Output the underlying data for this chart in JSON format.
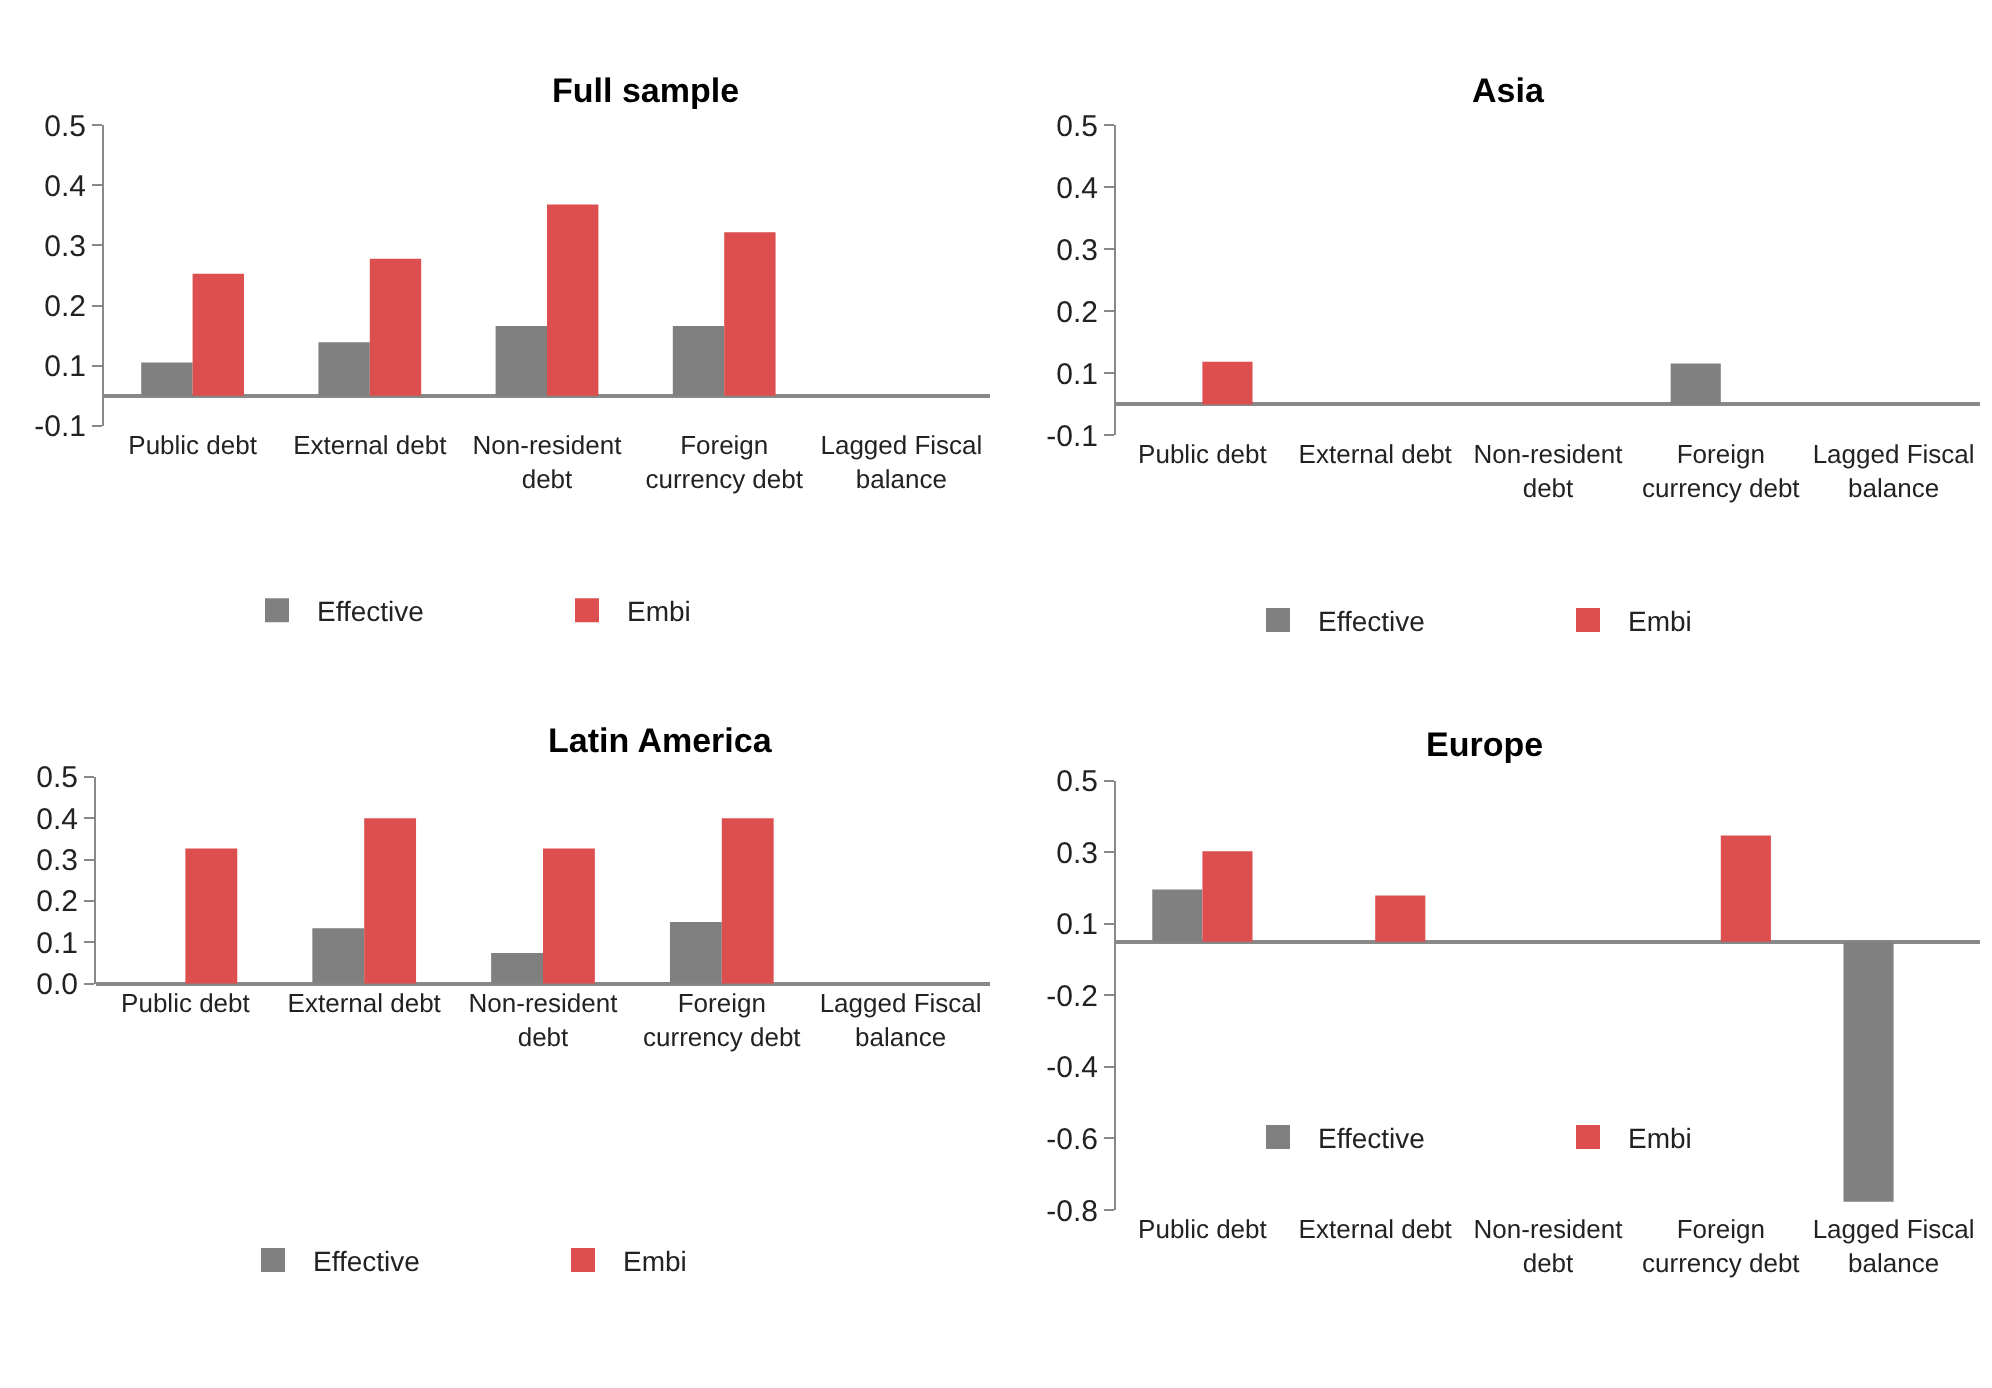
{
  "chart_data": [
    {
      "type": "bar",
      "title": "Full sample",
      "categories": [
        "Public debt",
        "External debt",
        "Non-resident debt",
        "Foreign currency debt",
        "Lagged Fiscal balance"
      ],
      "series": [
        {
          "name": "Effective",
          "color": "#808080",
          "values": [
            0.055,
            0.089,
            0.116,
            0.116,
            null
          ]
        },
        {
          "name": "Embi",
          "color": "#dd4e4e",
          "values": [
            0.203,
            0.228,
            0.318,
            0.272,
            null
          ]
        }
      ],
      "ylim": [
        -0.05,
        0.45
      ],
      "yticks": [
        {
          "value": -0.05,
          "label": "-0.1"
        },
        {
          "value": 0.05,
          "label": "0.1"
        },
        {
          "value": 0.15,
          "label": "0.2"
        },
        {
          "value": 0.25,
          "label": "0.3"
        },
        {
          "value": 0.35,
          "label": "0.4"
        },
        {
          "value": 0.45,
          "label": "0.5"
        }
      ],
      "grid": false,
      "legend": "bottom"
    },
    {
      "type": "bar",
      "title": "Asia",
      "categories": [
        "Public debt",
        "External debt",
        "Non-resident debt",
        "Foreign currency debt",
        "Lagged Fiscal balance"
      ],
      "series": [
        {
          "name": "Effective",
          "color": "#808080",
          "values": [
            null,
            null,
            null,
            0.066,
            null
          ]
        },
        {
          "name": "Embi",
          "color": "#dd4e4e",
          "values": [
            0.069,
            null,
            null,
            null,
            null
          ]
        }
      ],
      "ylim": [
        -0.05,
        0.45
      ],
      "yticks": [
        {
          "value": -0.05,
          "label": "-0.1"
        },
        {
          "value": 0.05,
          "label": "0.1"
        },
        {
          "value": 0.15,
          "label": "0.2"
        },
        {
          "value": 0.25,
          "label": "0.3"
        },
        {
          "value": 0.35,
          "label": "0.4"
        },
        {
          "value": 0.45,
          "label": "0.5"
        }
      ],
      "grid": false,
      "legend": "bottom"
    },
    {
      "type": "bar",
      "title": "Latin America",
      "categories": [
        "Public debt",
        "External debt",
        "Non-resident debt",
        "Foreign currency debt",
        "Lagged Fiscal balance"
      ],
      "series": [
        {
          "name": "Effective",
          "color": "#808080",
          "values": [
            null,
            0.134,
            0.074,
            0.149,
            null
          ]
        },
        {
          "name": "Embi",
          "color": "#dd4e4e",
          "values": [
            0.327,
            0.4,
            0.327,
            0.4,
            null
          ]
        }
      ],
      "ylim": [
        0,
        0.5
      ],
      "yticks": [
        {
          "value": 0,
          "label": "0.0"
        },
        0.1,
        0.2,
        0.3,
        0.4,
        0.5
      ],
      "grid": false,
      "legend": "bottom"
    },
    {
      "type": "bar",
      "title": "Europe",
      "categories": [
        "Public debt",
        "External debt",
        "Non-resident debt",
        "Foreign currency debt",
        "Lagged Fiscal balance"
      ],
      "series": [
        {
          "name": "Effective",
          "color": "#808080",
          "values": [
            0.146,
            null,
            null,
            null,
            -0.727
          ]
        },
        {
          "name": "Embi",
          "color": "#dd4e4e",
          "values": [
            0.253,
            0.129,
            null,
            0.297,
            null
          ]
        }
      ],
      "ylim": [
        -0.75,
        0.45
      ],
      "yticks": [
        {
          "value": -0.75,
          "label": "-0.8"
        },
        {
          "value": -0.55,
          "label": "-0.6"
        },
        {
          "value": -0.35,
          "label": "-0.4"
        },
        {
          "value": -0.15,
          "label": "-0.2"
        },
        {
          "value": 0.05,
          "label": "0.1"
        },
        {
          "value": 0.25,
          "label": "0.3"
        },
        {
          "value": 0.45,
          "label": "0.5"
        }
      ],
      "grid": false,
      "legend": "bottom"
    }
  ]
}
